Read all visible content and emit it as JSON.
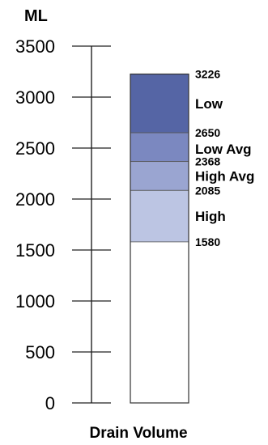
{
  "chart_data": {
    "type": "bar",
    "unit_label": "ML",
    "xlabel": "Drain Volume",
    "ylim": [
      0,
      3500
    ],
    "yticks": [
      0,
      500,
      1000,
      1500,
      2000,
      2500,
      3000,
      3500
    ],
    "ytick_labels": [
      "0",
      "500",
      "1000",
      "1500",
      "2000",
      "2500",
      "3000",
      "3500"
    ],
    "bar_total": 3226,
    "boundary_labels": [
      {
        "value": 3226,
        "label": "3226"
      },
      {
        "value": 2650,
        "label": "2650"
      },
      {
        "value": 2368,
        "label": "2368"
      },
      {
        "value": 2085,
        "label": "2085"
      },
      {
        "value": 1580,
        "label": "1580"
      }
    ],
    "bands": [
      {
        "name": "Low",
        "from": 2650,
        "to": 3226,
        "color": "#5565a5"
      },
      {
        "name": "Low Avg",
        "from": 2368,
        "to": 2650,
        "color": "#7b88c0"
      },
      {
        "name": "High Avg",
        "from": 2085,
        "to": 2368,
        "color": "#9aa5d1"
      },
      {
        "name": "High",
        "from": 1580,
        "to": 2085,
        "color": "#bcc5e3"
      }
    ],
    "base_color": "#ffffff",
    "grid": false
  }
}
